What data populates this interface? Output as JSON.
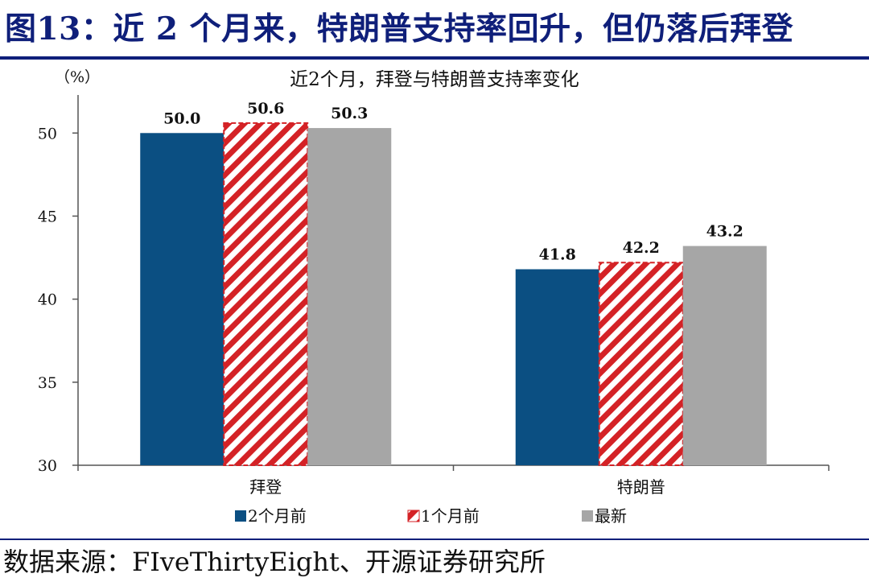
{
  "figure": {
    "title": "图13：近 2 个月来，特朗普支持率回升，但仍落后拜登",
    "source": "数据来源：FIveThirtyEight、开源证券研究所"
  },
  "colors": {
    "title_navy": "#0f1f7a",
    "series_two_months": "#0b4f82",
    "series_one_month": "#d42226",
    "series_latest": "#a6a6a6",
    "axis": "#555555"
  },
  "chart_data": {
    "type": "bar",
    "title": "近2个月，拜登与特朗普支持率变化",
    "unit_label": "（%）",
    "categories": [
      "拜登",
      "特朗普"
    ],
    "series": [
      {
        "name": "2个月前",
        "values": [
          50.0,
          41.8
        ],
        "labels": [
          "50.0",
          "41.8"
        ],
        "color": "#0b4f82",
        "pattern": "solid"
      },
      {
        "name": "1个月前",
        "values": [
          50.6,
          42.2
        ],
        "labels": [
          "50.6",
          "42.2"
        ],
        "color": "#d42226",
        "pattern": "diagonal-stripes"
      },
      {
        "name": "最新",
        "values": [
          50.3,
          43.2
        ],
        "labels": [
          "50.3",
          "43.2"
        ],
        "color": "#a6a6a6",
        "pattern": "solid"
      }
    ],
    "ylim": [
      30,
      52
    ],
    "yticks": [
      30,
      35,
      40,
      45,
      50
    ],
    "grid": false,
    "legend_position": "bottom"
  }
}
